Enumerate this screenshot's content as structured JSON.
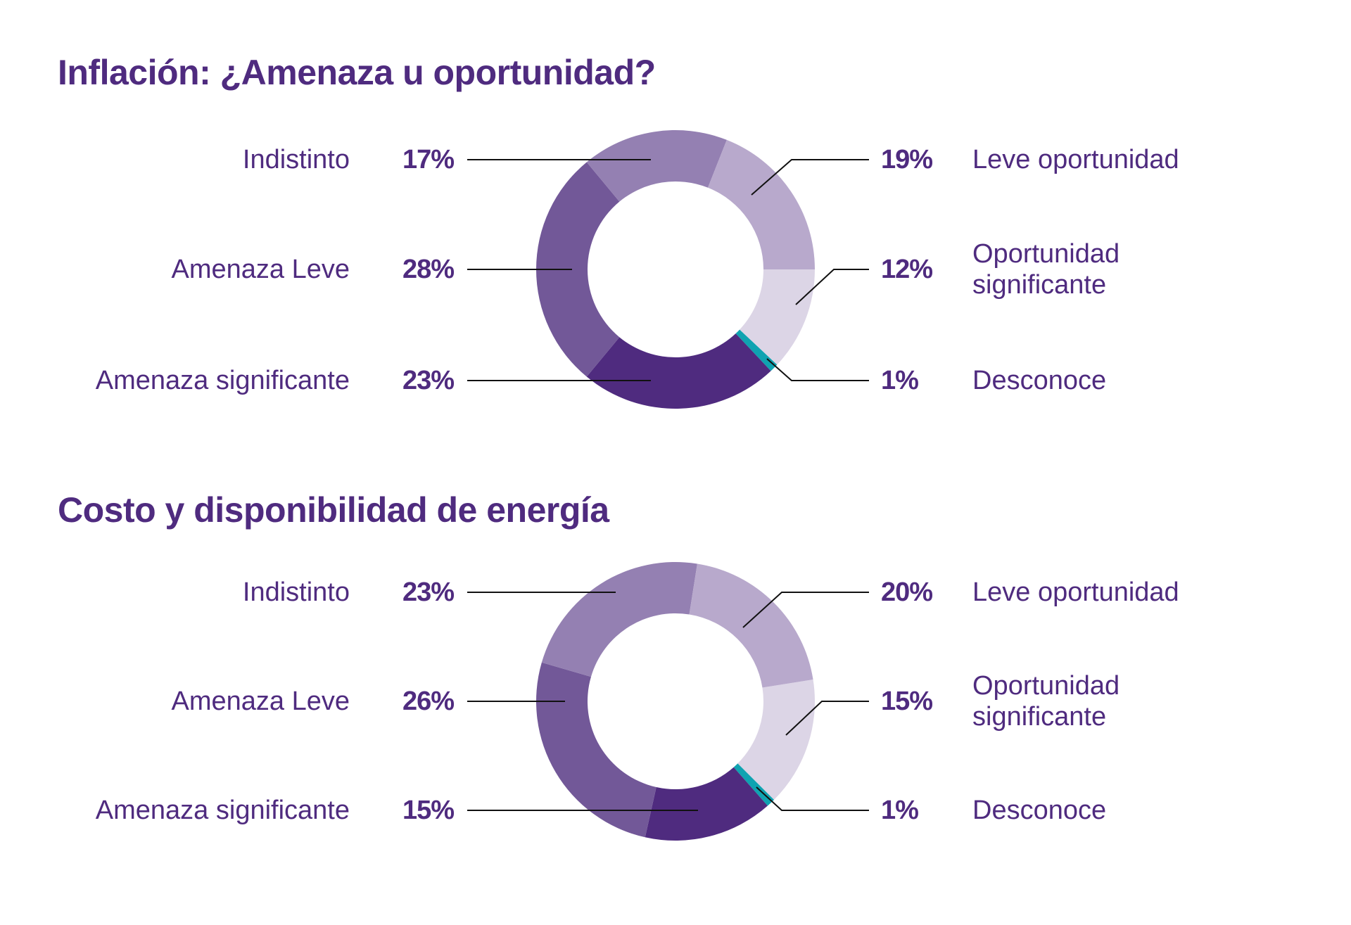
{
  "chart_data": [
    {
      "type": "pie",
      "variant": "donut",
      "title": "Inflación: ¿Amenaza u oportunidad?",
      "categories": [
        "Oportunidad significante",
        "Desconoce",
        "Amenaza significante",
        "Amenaza Leve",
        "Indistinto",
        "Leve oportunidad"
      ],
      "values": [
        12,
        1,
        23,
        28,
        17,
        19
      ],
      "value_labels": [
        "12%",
        "1%",
        "23%",
        "28%",
        "17%",
        "19%"
      ],
      "colors": [
        "#dcd5e6",
        "#0fa3b1",
        "#4f2b7f",
        "#725898",
        "#9480b2",
        "#b8a9cc"
      ]
    },
    {
      "type": "pie",
      "variant": "donut",
      "title": "Costo y disponibilidad de energía",
      "categories": [
        "Oportunidad significante",
        "Desconoce",
        "Amenaza significante",
        "Amenaza Leve",
        "Indistinto",
        "Leve oportunidad"
      ],
      "values": [
        15,
        1,
        15,
        26,
        23,
        20
      ],
      "value_labels": [
        "15%",
        "1%",
        "15%",
        "26%",
        "23%",
        "20%"
      ],
      "colors": [
        "#dcd5e6",
        "#0fa3b1",
        "#4f2b7f",
        "#725898",
        "#9480b2",
        "#b8a9cc"
      ]
    }
  ],
  "text_color": "#4f2b7f"
}
